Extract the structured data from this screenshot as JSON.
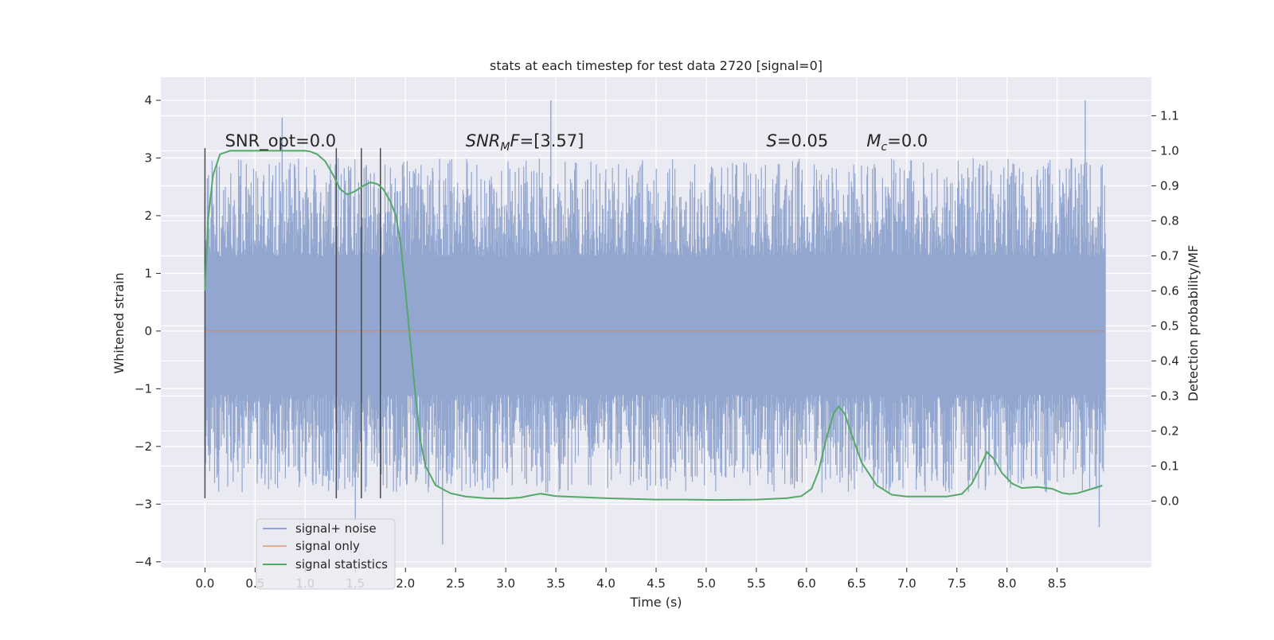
{
  "chart_data": {
    "type": "line",
    "title": "stats at each timestep for test data 2720 [signal=0]",
    "xlabel": "Time (s)",
    "ylabel": "Whitened strain",
    "y2label": "Detection probability/MF",
    "xlim": [
      -0.44,
      9.44
    ],
    "ylim": [
      -4.1,
      4.4
    ],
    "y2lim": [
      -0.19,
      1.21
    ],
    "xticks": [
      "0.0",
      "0.5",
      "1.0",
      "1.5",
      "2.0",
      "2.5",
      "3.0",
      "3.5",
      "4.0",
      "4.5",
      "5.0",
      "5.5",
      "6.0",
      "6.5",
      "7.0",
      "7.5",
      "8.0",
      "8.5"
    ],
    "yticks": [
      4,
      3,
      2,
      1,
      0,
      -1,
      -2,
      -3,
      -4
    ],
    "yticklabels": [
      "4",
      "3",
      "2",
      "1",
      "0",
      "−1",
      "−2",
      "−3",
      "−4"
    ],
    "y2ticks": [
      1.1,
      1.0,
      0.9,
      0.8,
      0.7,
      0.6,
      0.5,
      0.4,
      0.3,
      0.2,
      0.1,
      0.0
    ],
    "y2ticklabels": [
      "1.1",
      "1.0",
      "0.9",
      "0.8",
      "0.7",
      "0.6",
      "0.5",
      "0.4",
      "0.3",
      "0.2",
      "0.1",
      "0.0"
    ],
    "grid": true,
    "legend_position": "lower-left",
    "noise_envelope": {
      "x_range": [
        0.0,
        8.98
      ],
      "core_band": [
        -1.1,
        1.3
      ],
      "typical_peak_range": [
        -2.5,
        2.6
      ],
      "extreme_peaks": [
        {
          "x": 0.77,
          "y": 3.7
        },
        {
          "x": 3.45,
          "y": 4.0
        },
        {
          "x": 8.78,
          "y": 4.0
        },
        {
          "x": 2.37,
          "y": -3.7
        },
        {
          "x": 1.5,
          "y": -3.3
        },
        {
          "x": 8.92,
          "y": -3.4
        }
      ]
    },
    "signal_only": {
      "x": [
        0.0,
        8.98
      ],
      "y": [
        0.0,
        0.0
      ]
    },
    "vertical_markers": [
      0.0,
      1.31,
      1.56,
      1.75
    ],
    "vertical_marker_range": [
      -2.9,
      3.17
    ],
    "series": [
      {
        "name": "signal+ noise",
        "color": "#92a6cf"
      },
      {
        "name": "signal only",
        "color": "#dd8452"
      },
      {
        "name": "signal statistics",
        "color": "#55a868",
        "x": [
          0.0,
          0.03,
          0.08,
          0.15,
          0.25,
          0.4,
          0.6,
          0.8,
          1.0,
          1.05,
          1.12,
          1.2,
          1.28,
          1.35,
          1.42,
          1.5,
          1.58,
          1.65,
          1.72,
          1.78,
          1.84,
          1.9,
          1.95,
          2.0,
          2.05,
          2.1,
          2.15,
          2.2,
          2.3,
          2.45,
          2.6,
          2.8,
          3.0,
          3.15,
          3.25,
          3.35,
          3.5,
          4.0,
          4.5,
          4.8,
          5.1,
          5.5,
          5.8,
          5.95,
          6.05,
          6.12,
          6.2,
          6.27,
          6.32,
          6.38,
          6.45,
          6.55,
          6.7,
          6.85,
          7.0,
          7.2,
          7.4,
          7.55,
          7.65,
          7.72,
          7.8,
          7.87,
          7.95,
          8.05,
          8.15,
          8.3,
          8.45,
          8.55,
          8.62,
          8.7,
          8.85,
          8.95
        ],
        "y": [
          0.6,
          0.8,
          0.93,
          0.99,
          1.0,
          1.0,
          1.0,
          1.0,
          1.0,
          0.998,
          0.99,
          0.97,
          0.93,
          0.89,
          0.875,
          0.885,
          0.9,
          0.91,
          0.905,
          0.89,
          0.86,
          0.82,
          0.74,
          0.6,
          0.45,
          0.3,
          0.17,
          0.1,
          0.045,
          0.022,
          0.013,
          0.008,
          0.007,
          0.01,
          0.016,
          0.021,
          0.014,
          0.008,
          0.004,
          0.004,
          0.003,
          0.004,
          0.008,
          0.014,
          0.035,
          0.085,
          0.18,
          0.25,
          0.27,
          0.25,
          0.19,
          0.11,
          0.045,
          0.018,
          0.013,
          0.013,
          0.013,
          0.02,
          0.05,
          0.09,
          0.14,
          0.12,
          0.08,
          0.05,
          0.037,
          0.04,
          0.035,
          0.023,
          0.02,
          0.022,
          0.035,
          0.044
        ]
      }
    ],
    "annotations": [
      {
        "key": "snr_opt",
        "text": "SNR_opt=0.0",
        "x": 0.2,
        "y": 3.17
      },
      {
        "key": "snr_mf",
        "prefix": "",
        "math": "SNR",
        "sub": "M",
        "math2": "F",
        "suffix": "=[3.57]",
        "x": 2.6,
        "y": 3.17
      },
      {
        "key": "s",
        "math": "S",
        "suffix": "=0.05",
        "x": 5.6,
        "y": 3.17
      },
      {
        "key": "mc",
        "math": "M",
        "sub": "c",
        "suffix": "=0.0",
        "x": 6.6,
        "y": 3.17
      }
    ]
  }
}
